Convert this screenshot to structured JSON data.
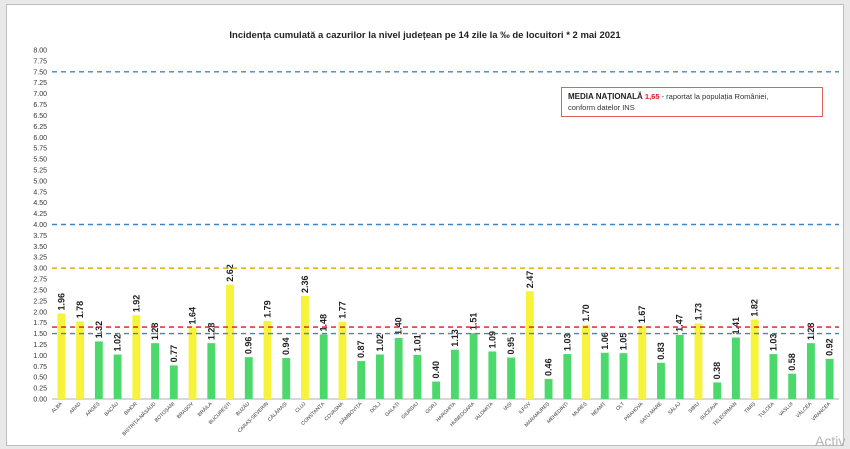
{
  "chart_data": {
    "type": "bar",
    "title": "Incidența cumulată a cazurilor la nivel județean pe 14 zile la ‰ de locuitori *   2 mai 2021",
    "xlabel": "",
    "ylabel": "",
    "ylim": [
      0,
      8
    ],
    "y_ticks": [
      "0.00",
      "0.25",
      "0.50",
      "0.75",
      "1.00",
      "1.25",
      "1.50",
      "1.75",
      "2.00",
      "2.25",
      "2.50",
      "2.75",
      "3.00",
      "3.25",
      "3.50",
      "3.75",
      "4.00",
      "4.25",
      "4.50",
      "4.75",
      "5.00",
      "5.25",
      "5.50",
      "5.75",
      "6.00",
      "6.25",
      "6.50",
      "6.75",
      "7.00",
      "7.25",
      "7.50",
      "7.75",
      "8.00"
    ],
    "categories": [
      "ALBA",
      "ARAD",
      "ARGEȘ",
      "BACĂU",
      "BIHOR",
      "BISTRIȚA-NĂSĂUD",
      "BOTOȘANI",
      "BRAȘOV",
      "BRĂILA",
      "BUCUREȘTI",
      "BUZĂU",
      "CARAȘ-SEVERIN",
      "CĂLĂRAȘI",
      "CLUJ",
      "CONSTANȚA",
      "COVASNA",
      "DÂMBOVIȚA",
      "DOLJ",
      "GALAȚI",
      "GIURGIU",
      "GORJ",
      "HARGHITA",
      "HUNEDOARA",
      "IALOMIȚA",
      "IAȘI",
      "ILFOV",
      "MARAMUREȘ",
      "MEHEDINȚI",
      "MUREȘ",
      "NEAMȚ",
      "OLT",
      "PRAHOVA",
      "SATU MARE",
      "SĂLAJ",
      "SIBIU",
      "SUCEAVA",
      "TELEORMAN",
      "TIMIȘ",
      "TULCEA",
      "VASLUI",
      "VÂLCEA",
      "VRANCEA"
    ],
    "values": [
      1.96,
      1.78,
      1.32,
      1.02,
      1.92,
      1.28,
      0.77,
      1.64,
      1.28,
      2.62,
      0.96,
      1.79,
      0.94,
      2.36,
      1.48,
      1.77,
      0.87,
      1.02,
      1.4,
      1.01,
      0.4,
      1.13,
      1.51,
      1.09,
      0.95,
      2.47,
      0.46,
      1.03,
      1.7,
      1.06,
      1.05,
      1.67,
      0.83,
      1.47,
      1.73,
      0.38,
      1.41,
      1.82,
      1.03,
      0.58,
      1.28,
      0.92
    ],
    "value_labels": [
      "1.96",
      "1.78",
      "1.32",
      "1.02",
      "1.92",
      "1.28",
      "0.77",
      "1.64",
      "1.28",
      "2.62",
      "0.96",
      "1.79",
      "0.94",
      "2.36",
      "1.48",
      "1.77",
      "0.87",
      "1.02",
      "1.40",
      "1.01",
      "0.40",
      "1.13",
      "1.51",
      "1.09",
      "0.95",
      "2.47",
      "0.46",
      "1.03",
      "1.70",
      "1.06",
      "1.05",
      "1.67",
      "0.83",
      "1.47",
      "1.73",
      "0.38",
      "1.41",
      "1.82",
      "1.03",
      "0.58",
      "1.28",
      "0.92"
    ],
    "highlighted": [
      "ALBA",
      "ARAD",
      "BIHOR",
      "BRAȘOV",
      "BUCUREȘTI",
      "CARAȘ-SEVERIN",
      "CLUJ",
      "COVASNA",
      "ILFOV",
      "MUREȘ",
      "PRAHOVA",
      "SIBIU",
      "TIMIȘ"
    ],
    "colors": {
      "normal": "#4cd96c",
      "highlight": "#f7f23a"
    },
    "reference_lines": [
      {
        "value": 7.5,
        "color": "#3b86c8",
        "style": "dashed"
      },
      {
        "value": 4.0,
        "color": "#3b86c8",
        "style": "dashed"
      },
      {
        "value": 3.0,
        "color": "#e0b000",
        "style": "dashed"
      },
      {
        "value": 1.65,
        "color": "#e0141e",
        "style": "dashed"
      },
      {
        "value": 1.5,
        "color": "#3b86c8",
        "style": "dashed"
      }
    ],
    "grid": false
  },
  "callout": {
    "label": "MEDIA NAȚIONALĂ",
    "value": "1,65",
    "text_line1": " - raportat la populația României,",
    "text_line2": "conform datelor INS"
  },
  "watermark": "Activ"
}
